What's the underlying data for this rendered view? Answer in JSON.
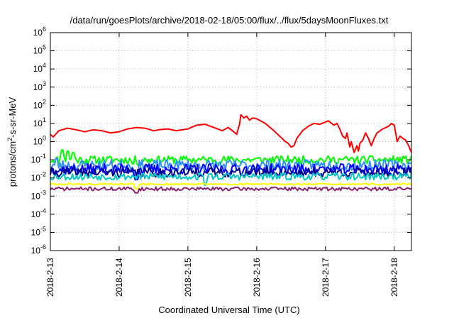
{
  "chart_data": {
    "type": "line",
    "title": "/data/run/goesPlots/archive/2018-02-18/05:00/flux/../flux/5daysMoonFluxes.txt",
    "xlabel": "Coordinated Universal Time (UTC)",
    "ylabel": {
      "base": "protons/cm",
      "sup": "2",
      "rest": "-s-sr-MeV"
    },
    "yscale": "log",
    "ylim_exp": [
      -6,
      6
    ],
    "y_ticks": [
      {
        "exp": -6,
        "label": "10",
        "sup": "-6"
      },
      {
        "exp": -5,
        "label": "10",
        "sup": "-5"
      },
      {
        "exp": -4,
        "label": "10",
        "sup": "-4"
      },
      {
        "exp": -3,
        "label": "10",
        "sup": "-3"
      },
      {
        "exp": -2,
        "label": "10",
        "sup": "-2"
      },
      {
        "exp": -1,
        "label": "10",
        "sup": "-1"
      },
      {
        "exp": 0,
        "label": "10",
        "sup": "0"
      },
      {
        "exp": 1,
        "label": "10",
        "sup": "1"
      },
      {
        "exp": 2,
        "label": "10",
        "sup": "2"
      },
      {
        "exp": 3,
        "label": "10",
        "sup": "3"
      },
      {
        "exp": 4,
        "label": "10",
        "sup": "4"
      },
      {
        "exp": 5,
        "label": "10",
        "sup": "5"
      },
      {
        "exp": 6,
        "label": "10",
        "sup": "6"
      }
    ],
    "xlim": [
      "2018-02-13",
      "2018-02-18T06:00"
    ],
    "x_ticks": [
      {
        "date": "2018-02-13",
        "label": "2018-2-13"
      },
      {
        "date": "2018-02-14",
        "label": "2018-2-14"
      },
      {
        "date": "2018-02-15",
        "label": "2018-2-15"
      },
      {
        "date": "2018-02-16",
        "label": "2018-2-16"
      },
      {
        "date": "2018-02-17",
        "label": "2018-2-17"
      },
      {
        "date": "2018-02-18",
        "label": "2018-2-18"
      }
    ],
    "grid": true,
    "series": [
      {
        "color": "#ff0000",
        "base": "red",
        "points": [
          [
            "2018-02-13T00:00",
            2.5
          ],
          [
            "2018-02-13T01:00",
            1.8
          ],
          [
            "2018-02-13T03:00",
            4.0
          ],
          [
            "2018-02-13T06:00",
            5.5
          ],
          [
            "2018-02-13T09:00",
            4.5
          ],
          [
            "2018-02-13T12:00",
            3.5
          ],
          [
            "2018-02-13T15:00",
            4.5
          ],
          [
            "2018-02-13T18:00",
            4.0
          ],
          [
            "2018-02-13T21:00",
            3.0
          ],
          [
            "2018-02-14T00:00",
            3.5
          ],
          [
            "2018-02-14T03:00",
            5.0
          ],
          [
            "2018-02-14T06:00",
            6.0
          ],
          [
            "2018-02-14T09:00",
            5.5
          ],
          [
            "2018-02-14T12:00",
            4.0
          ],
          [
            "2018-02-14T14:00",
            4.5
          ],
          [
            "2018-02-14T17:00",
            5.0
          ],
          [
            "2018-02-14T20:00",
            4.0
          ],
          [
            "2018-02-15T00:00",
            5.0
          ],
          [
            "2018-02-15T03:00",
            8.0
          ],
          [
            "2018-02-15T06:00",
            9.0
          ],
          [
            "2018-02-15T09:00",
            6.0
          ],
          [
            "2018-02-15T12:00",
            4.0
          ],
          [
            "2018-02-15T14:00",
            6.0
          ],
          [
            "2018-02-15T16:00",
            3.5
          ],
          [
            "2018-02-15T17:00",
            2.5
          ],
          [
            "2018-02-15T18:00",
            9.0
          ],
          [
            "2018-02-15T18:30",
            30.0
          ],
          [
            "2018-02-15T19:30",
            20.0
          ],
          [
            "2018-02-15T20:30",
            25.0
          ],
          [
            "2018-02-15T21:30",
            15.0
          ],
          [
            "2018-02-15T22:30",
            20.0
          ],
          [
            "2018-02-16T00:00",
            18.0
          ],
          [
            "2018-02-16T03:00",
            10.0
          ],
          [
            "2018-02-16T06:00",
            4.0
          ],
          [
            "2018-02-16T08:00",
            2.0
          ],
          [
            "2018-02-16T10:00",
            1.0
          ],
          [
            "2018-02-16T11:00",
            0.8
          ],
          [
            "2018-02-16T12:00",
            0.5
          ],
          [
            "2018-02-16T13:00",
            0.6
          ],
          [
            "2018-02-16T14:00",
            1.5
          ],
          [
            "2018-02-16T16:00",
            4.0
          ],
          [
            "2018-02-16T18:00",
            7.0
          ],
          [
            "2018-02-16T20:00",
            10.0
          ],
          [
            "2018-02-16T22:00",
            9.0
          ],
          [
            "2018-02-17T00:00",
            12.0
          ],
          [
            "2018-02-17T01:00",
            14.0
          ],
          [
            "2018-02-17T03:00",
            8.0
          ],
          [
            "2018-02-17T04:00",
            10.0
          ],
          [
            "2018-02-17T05:00",
            5.0
          ],
          [
            "2018-02-17T06:00",
            2.0
          ],
          [
            "2018-02-17T07:00",
            1.5
          ],
          [
            "2018-02-17T07:30",
            3.0
          ],
          [
            "2018-02-17T08:30",
            0.5
          ],
          [
            "2018-02-17T09:00",
            1.0
          ],
          [
            "2018-02-17T10:00",
            0.25
          ],
          [
            "2018-02-17T11:00",
            0.6
          ],
          [
            "2018-02-17T11:30",
            0.3
          ],
          [
            "2018-02-17T12:00",
            0.8
          ],
          [
            "2018-02-17T13:00",
            1.2
          ],
          [
            "2018-02-17T14:00",
            3.0
          ],
          [
            "2018-02-17T15:00",
            1.5
          ],
          [
            "2018-02-17T16:00",
            0.6
          ],
          [
            "2018-02-17T17:00",
            1.5
          ],
          [
            "2018-02-17T18:00",
            3.0
          ],
          [
            "2018-02-17T20:00",
            5.0
          ],
          [
            "2018-02-17T22:00",
            7.0
          ],
          [
            "2018-02-17T23:00",
            10.0
          ],
          [
            "2018-02-18T00:00",
            8.0
          ],
          [
            "2018-02-18T00:30",
            3.0
          ],
          [
            "2018-02-18T01:00",
            1.0
          ],
          [
            "2018-02-18T02:00",
            2.0
          ],
          [
            "2018-02-18T03:00",
            1.5
          ],
          [
            "2018-02-18T04:00",
            1.2
          ],
          [
            "2018-02-18T05:00",
            0.6
          ],
          [
            "2018-02-18T06:00",
            0.25
          ]
        ]
      },
      {
        "color": "#00ff00",
        "base": 0.1,
        "amp": 0.22,
        "seed": 11,
        "extras": [
          [
            "2018-02-13T04:00",
            0.35
          ],
          [
            "2018-02-13T06:00",
            0.3
          ],
          [
            "2018-02-13T08:00",
            0.25
          ],
          [
            "2018-02-14T05:00",
            0.06
          ],
          [
            "2018-02-14T07:00",
            0.05
          ]
        ]
      },
      {
        "color": "#3090ff",
        "base": 0.05,
        "amp": 0.3,
        "seed": 23,
        "extras": [
          [
            "2018-02-13T02:00",
            0.12
          ],
          [
            "2018-02-14T06:00",
            0.01
          ]
        ]
      },
      {
        "color": "#0000ff",
        "base": 0.03,
        "amp": 0.3,
        "seed": 37,
        "extras": [
          [
            "2018-02-14T06:00",
            0.008
          ]
        ]
      },
      {
        "color": "#000090",
        "base": 0.02,
        "amp": 0.25,
        "seed": 41,
        "extras": []
      },
      {
        "color": "#00c8c8",
        "base": 0.012,
        "amp": 0.2,
        "seed": 53,
        "extras": [
          [
            "2018-02-15T06:00",
            0.004
          ]
        ]
      },
      {
        "color": "#ffff00",
        "base": 0.0045,
        "amp": 0.05,
        "seed": 61,
        "extras": [
          [
            "2018-02-14T06:00",
            0.0025
          ]
        ]
      },
      {
        "color": "#8c2070",
        "base": 0.0025,
        "amp": 0.1,
        "seed": 71,
        "extras": [
          [
            "2018-02-14T06:00",
            0.0015
          ]
        ]
      }
    ]
  }
}
